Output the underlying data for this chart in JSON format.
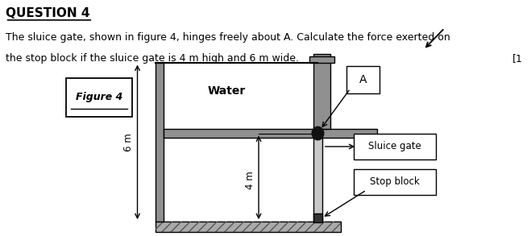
{
  "title": "QUESTION 4",
  "question_text_line1": "The sluice gate, shown in figure 4, hinges freely about A. Calculate the force exerted on",
  "question_text_line2": "the stop block if the sluice gate is 4 m high and 6 m wide.",
  "bracket_text": "[1",
  "figure_label": "Figure 4",
  "water_label": "Water",
  "label_A": "A",
  "label_sluice": "Sluice gate",
  "label_stop": "Stop block",
  "dim_6m": "6 m",
  "dim_4m": "4 m",
  "bg_color": "#ffffff",
  "wall_color": "#909090",
  "floor_color": "#aaaaaa",
  "gate_color": "#c8c8c8",
  "hinge_color": "#111111",
  "stop_block_color": "#333333",
  "line_color": "#000000"
}
